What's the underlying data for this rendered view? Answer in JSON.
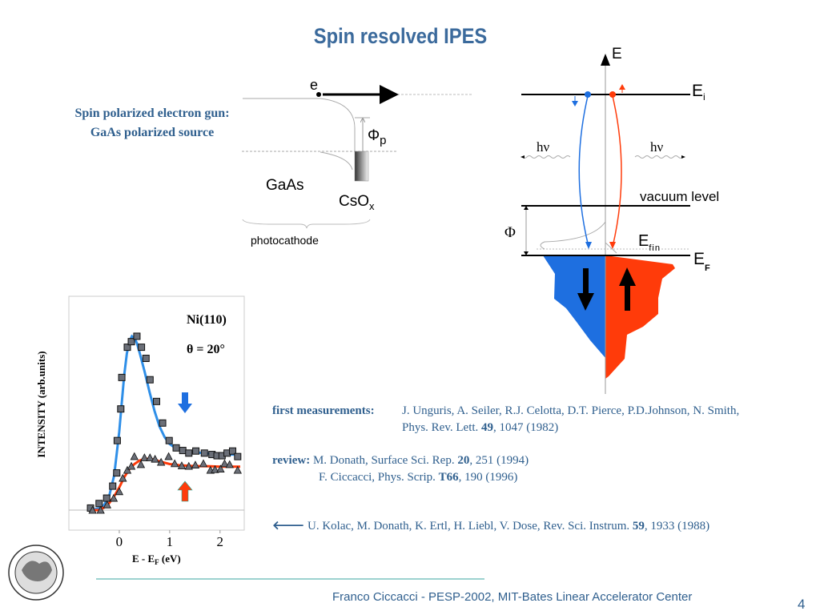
{
  "title": "Spin resolved IPES",
  "gun": {
    "line1": "Spin polarized electron gun:",
    "line2": "GaAs polarized source"
  },
  "cathode_diagram": {
    "electron": "e",
    "phi_p": "Φ",
    "phi_p_sub": "p",
    "gaas": "GaAs",
    "csox": "CsO",
    "csox_sub": "x",
    "photocathode": "photocathode"
  },
  "energy_diagram": {
    "axis": "E",
    "ei": "E",
    "ei_sub": "i",
    "hv_left": "hν",
    "hv_right": "hν",
    "vacuum": "vacuum level",
    "phi": "Φ",
    "efin": "E",
    "efin_sub": "fin",
    "ef": "E",
    "ef_sub": "F",
    "colors": {
      "spin_down": "#1e6fe0",
      "spin_up": "#ff3b0a"
    }
  },
  "references": {
    "first_label": "first measurements:",
    "first_line1": "J. Unguris, A. Seiler, R.J. Celotta, D.T. Pierce, P.D.Johnson,  N. Smith,",
    "first_line2_a": "Phys. Rev. Lett. ",
    "first_line2_b": "49",
    "first_line2_c": ", 1047 (1982)",
    "review_label": "review:",
    "review1_a": " M. Donath, Surface Sci. Rep. ",
    "review1_b": "20",
    "review1_c": ", 251 (1994)",
    "review2_a": "F. Ciccacci, Phys. Scrip. ",
    "review2_b": "T66",
    "review2_c": ", 190 (1996)",
    "kolac_icon": "arrow-left-icon",
    "kolac_a": "U. Kolac, M. Donath, K. Ertl, H. Liebl, V. Dose, Rev. Sci. Instrum. ",
    "kolac_b": "59",
    "kolac_c": ", 1933 (1988)"
  },
  "footer": {
    "text": "Franco Ciccacci -  PESP-2002, MIT-Bates Linear Accelerator Center",
    "page": "4"
  },
  "chart_data": {
    "type": "scatter",
    "title": "Ni(110)",
    "annotation": "θ = 20°",
    "xlabel": "E - E",
    "xlabel_sub": "F",
    "xlabel_unit": " (eV)",
    "ylabel": "INTENSITY (arb.units)",
    "xlim": [
      -1.0,
      2.48
    ],
    "ylim": [
      -0.115,
      1.23
    ],
    "xticks": [
      0,
      1,
      2
    ],
    "grid": false,
    "series": [
      {
        "marker": "square",
        "color": "#2f8fe8",
        "x": [
          -0.57,
          -0.4,
          -0.25,
          -0.13,
          -0.05,
          -0.04,
          0.03,
          0.05,
          0.16,
          0.24,
          0.35,
          0.44,
          0.53,
          0.61,
          0.74,
          0.86,
          0.99,
          1.13,
          1.26,
          1.38,
          1.52,
          1.69,
          1.84,
          1.94,
          2.04,
          2.14,
          2.25,
          2.35
        ],
        "y": [
          0.012,
          0.038,
          0.069,
          0.138,
          0.214,
          0.4,
          0.582,
          0.763,
          0.937,
          0.969,
          1.0,
          0.937,
          0.873,
          0.75,
          0.625,
          0.501,
          0.4,
          0.358,
          0.343,
          0.328,
          0.34,
          0.328,
          0.32,
          0.313,
          0.313,
          0.328,
          0.34,
          0.308
        ],
        "fit_x": [
          -0.6,
          -0.4,
          -0.3,
          -0.2,
          -0.1,
          0,
          0.05,
          0.1,
          0.15,
          0.2,
          0.25,
          0.3,
          0.35,
          0.4,
          0.5,
          0.6,
          0.7,
          0.8,
          0.9,
          1.0,
          1.1,
          1.2,
          1.4,
          1.6,
          1.8,
          2.0,
          2.2,
          2.4
        ],
        "fit_y": [
          0.0,
          0.01,
          0.03,
          0.08,
          0.2,
          0.45,
          0.62,
          0.78,
          0.9,
          0.97,
          1.0,
          0.99,
          0.96,
          0.91,
          0.8,
          0.68,
          0.57,
          0.48,
          0.42,
          0.38,
          0.36,
          0.345,
          0.335,
          0.33,
          0.325,
          0.32,
          0.32,
          0.32
        ]
      },
      {
        "marker": "triangle",
        "color": "#ff3b0a",
        "x": [
          -0.53,
          -0.37,
          -0.24,
          -0.11,
          0.0,
          0.07,
          0.16,
          0.24,
          0.3,
          0.43,
          0.5,
          0.61,
          0.71,
          0.83,
          0.98,
          1.1,
          1.24,
          1.38,
          1.51,
          1.67,
          1.81,
          1.9,
          2.01,
          2.09,
          2.19,
          2.35
        ],
        "y": [
          0.0,
          0.0,
          0.031,
          0.069,
          0.107,
          0.184,
          0.23,
          0.253,
          0.309,
          0.263,
          0.302,
          0.302,
          0.294,
          0.276,
          0.309,
          0.268,
          0.256,
          0.253,
          0.26,
          0.268,
          0.23,
          0.234,
          0.237,
          0.268,
          0.263,
          0.23
        ],
        "fit_x": [
          -0.6,
          -0.4,
          -0.3,
          -0.2,
          -0.1,
          0,
          0.1,
          0.2,
          0.3,
          0.4,
          0.5,
          0.6,
          0.7,
          0.8,
          1.0,
          1.2,
          1.4,
          1.6,
          1.8,
          2.0,
          2.2,
          2.4
        ],
        "fit_y": [
          0.0,
          0.0,
          0.015,
          0.04,
          0.08,
          0.13,
          0.19,
          0.235,
          0.265,
          0.285,
          0.295,
          0.295,
          0.29,
          0.28,
          0.265,
          0.258,
          0.255,
          0.253,
          0.252,
          0.25,
          0.25,
          0.25
        ]
      }
    ]
  }
}
